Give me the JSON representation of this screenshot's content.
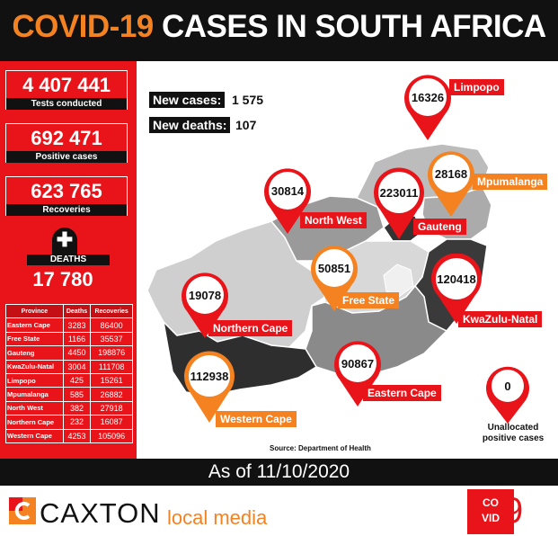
{
  "header": {
    "title_part1": "COVID-19",
    "title_part2": " CASES IN SOUTH AFRICA"
  },
  "stats": {
    "tests_value": "4 407 441",
    "tests_label": "Tests conducted",
    "positive_value": "692 471",
    "positive_label": "Positive cases",
    "recoveries_value": "623 765",
    "recoveries_label": "Recoveries",
    "deaths_label": "DEATHS",
    "deaths_value": "17 780",
    "cross": "✚"
  },
  "table": {
    "headers": [
      "Province",
      "Deaths",
      "Recoveries"
    ],
    "rows": [
      [
        "Eastern Cape",
        "3283",
        "86400"
      ],
      [
        "Free State",
        "1166",
        "35537"
      ],
      [
        "Gauteng",
        "4450",
        "198876"
      ],
      [
        "KwaZulu-Natal",
        "3004",
        "111708"
      ],
      [
        "Limpopo",
        "425",
        "15261"
      ],
      [
        "Mpumalanga",
        "585",
        "26882"
      ],
      [
        "North West",
        "382",
        "27918"
      ],
      [
        "Northern Cape",
        "232",
        "16087"
      ],
      [
        "Western Cape",
        "4253",
        "105096"
      ]
    ]
  },
  "new_cases": {
    "label": "New cases:",
    "value": "1 575"
  },
  "new_deaths": {
    "label": "New deaths:",
    "value": "107"
  },
  "provinces": {
    "limpopo": {
      "name": "Limpopo",
      "value": "16326"
    },
    "mpumalanga": {
      "name": "Mpumalanga",
      "value": "28168"
    },
    "gauteng": {
      "name": "Gauteng",
      "value": "223011"
    },
    "north_west": {
      "name": "North West",
      "value": "30814"
    },
    "free_state": {
      "name": "Free State",
      "value": "50851"
    },
    "kwazulu_natal": {
      "name": "KwaZulu-Natal",
      "value": "120418"
    },
    "northern_cape": {
      "name": "Northern Cape",
      "value": "19078"
    },
    "eastern_cape": {
      "name": "Eastern Cape",
      "value": "90867"
    },
    "western_cape": {
      "name": "Western Cape",
      "value": "112938"
    }
  },
  "unallocated": {
    "value": "0",
    "label_line1": "Unallocated",
    "label_line2": "positive cases"
  },
  "source": "Source: Department of Health",
  "as_of": "As of 11/10/2020",
  "footer": {
    "brand": "CAXTON",
    "sub": "local media",
    "badge_line1": "CO",
    "badge_line2": "VID",
    "badge_num": "9"
  },
  "colors": {
    "red": "#e8141a",
    "orange": "#f58220",
    "dark": "#111111"
  }
}
